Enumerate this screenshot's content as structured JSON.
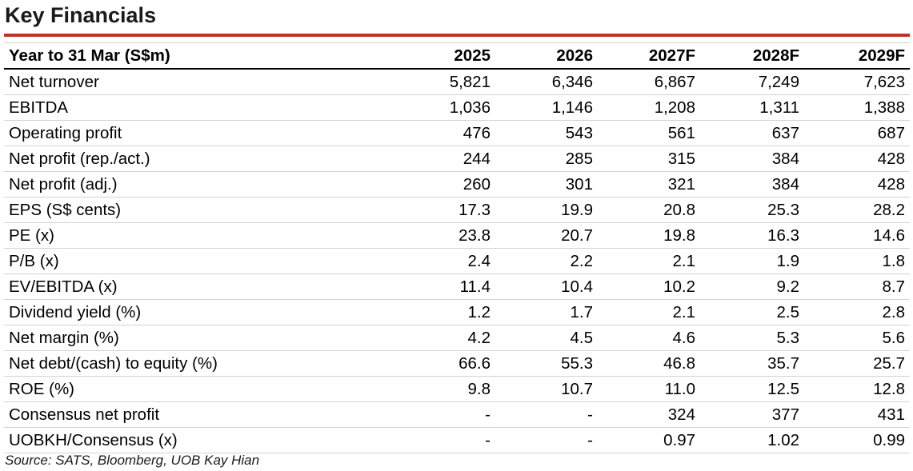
{
  "title": "Key Financials",
  "accent_color": "#c0312b",
  "table": {
    "header": {
      "label": "Year to 31 Mar (S$m)",
      "years": [
        "2025",
        "2026",
        "2027F",
        "2028F",
        "2029F"
      ]
    },
    "rows": [
      {
        "label": "Net turnover",
        "values": [
          "5,821",
          "6,346",
          "6,867",
          "7,249",
          "7,623"
        ]
      },
      {
        "label": "EBITDA",
        "values": [
          "1,036",
          "1,146",
          "1,208",
          "1,311",
          "1,388"
        ]
      },
      {
        "label": "Operating profit",
        "values": [
          "476",
          "543",
          "561",
          "637",
          "687"
        ]
      },
      {
        "label": "Net profit (rep./act.)",
        "values": [
          "244",
          "285",
          "315",
          "384",
          "428"
        ]
      },
      {
        "label": "Net profit (adj.)",
        "values": [
          "260",
          "301",
          "321",
          "384",
          "428"
        ]
      },
      {
        "label": "EPS (S$ cents)",
        "values": [
          "17.3",
          "19.9",
          "20.8",
          "25.3",
          "28.2"
        ]
      },
      {
        "label": "PE (x)",
        "values": [
          "23.8",
          "20.7",
          "19.8",
          "16.3",
          "14.6"
        ]
      },
      {
        "label": "P/B (x)",
        "values": [
          "2.4",
          "2.2",
          "2.1",
          "1.9",
          "1.8"
        ]
      },
      {
        "label": "EV/EBITDA (x)",
        "values": [
          "11.4",
          "10.4",
          "10.2",
          "9.2",
          "8.7"
        ]
      },
      {
        "label": "Dividend yield (%)",
        "values": [
          "1.2",
          "1.7",
          "2.1",
          "2.5",
          "2.8"
        ]
      },
      {
        "label": "Net margin (%)",
        "values": [
          "4.2",
          "4.5",
          "4.6",
          "5.3",
          "5.6"
        ]
      },
      {
        "label": "Net debt/(cash) to equity (%)",
        "values": [
          "66.6",
          "55.3",
          "46.8",
          "35.7",
          "25.7"
        ]
      },
      {
        "label": "ROE (%)",
        "values": [
          "9.8",
          "10.7",
          "11.0",
          "12.5",
          "12.8"
        ]
      },
      {
        "label": "Consensus net profit",
        "values": [
          "-",
          "-",
          "324",
          "377",
          "431"
        ]
      },
      {
        "label": "UOBKH/Consensus (x)",
        "values": [
          "-",
          "-",
          "0.97",
          "1.02",
          "0.99"
        ]
      }
    ]
  },
  "source": "Source: SATS, Bloomberg, UOB Kay Hian"
}
